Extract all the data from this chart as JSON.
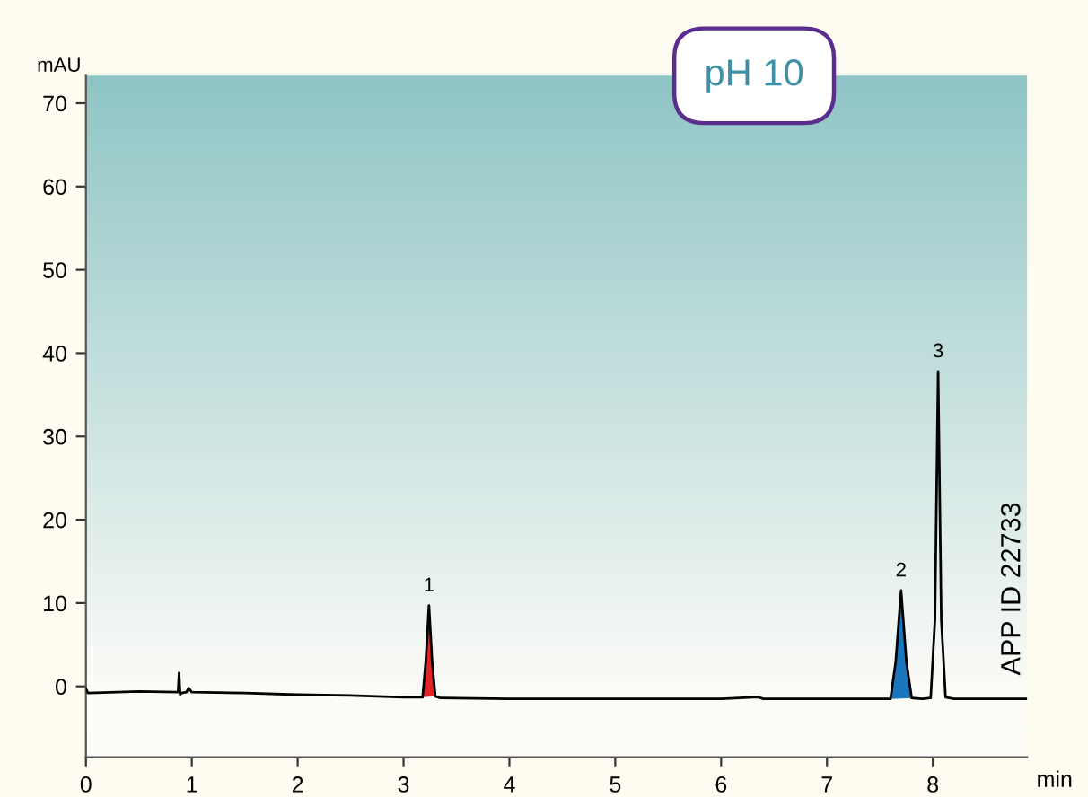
{
  "chart_data": {
    "type": "line",
    "title": "pH 10",
    "xlabel": "min",
    "ylabel": "mAU",
    "xlim": [
      0,
      8.89
    ],
    "ylim": [
      -8.5,
      73.3
    ],
    "xticks": [
      0,
      1,
      2,
      3,
      4,
      5,
      6,
      7,
      8
    ],
    "yticks": [
      0,
      10,
      20,
      30,
      40,
      50,
      60,
      70
    ],
    "grid": false,
    "marker": "none",
    "line_style": "solid",
    "series": [
      {
        "type": "area",
        "color": "#e3232a",
        "x": [
          3.18,
          3.21,
          3.24,
          3.27,
          3.3
        ],
        "values": [
          -1.3,
          3,
          9.7,
          3,
          -1.2
        ]
      },
      {
        "type": "area",
        "color": "#1b75bb",
        "x": [
          7.6,
          7.65,
          7.7,
          7.75,
          7.8
        ],
        "values": [
          -1.5,
          3,
          11.5,
          3,
          -1.4
        ]
      },
      {
        "color": "#000000",
        "x": [
          0,
          0.02,
          0.5,
          0.87,
          0.88,
          0.89,
          0.9,
          0.95,
          0.97,
          1.0,
          1.5,
          2.0,
          2.5,
          3.0,
          3.18,
          3.21,
          3.24,
          3.27,
          3.3,
          3.35,
          4,
          5,
          6,
          6.3,
          6.35,
          6.4,
          7,
          7.6,
          7.65,
          7.7,
          7.75,
          7.8,
          7.9,
          7.98,
          8.02,
          8.05,
          8.08,
          8.12,
          8.2,
          8.5,
          8.89
        ],
        "values": [
          -0.3,
          -0.8,
          -0.6,
          -0.7,
          1.6,
          -1.0,
          -0.8,
          -0.7,
          -0.2,
          -0.7,
          -0.8,
          -1.0,
          -1.1,
          -1.3,
          -1.3,
          3,
          9.7,
          3,
          -1.2,
          -1.4,
          -1.5,
          -1.5,
          -1.5,
          -1.3,
          -1.3,
          -1.5,
          -1.5,
          -1.5,
          3,
          11.5,
          3,
          -1.4,
          -1.5,
          -1.4,
          8,
          37.8,
          8,
          -1.3,
          -1.5,
          -1.5,
          -1.5
        ]
      }
    ],
    "annotations": [
      {
        "text": "1",
        "x": 3.24,
        "y": 9.7
      },
      {
        "text": "2",
        "x": 7.7,
        "y": 11.5
      },
      {
        "text": "3",
        "x": 8.05,
        "y": 37.8
      },
      "APP ID 22733"
    ]
  }
}
